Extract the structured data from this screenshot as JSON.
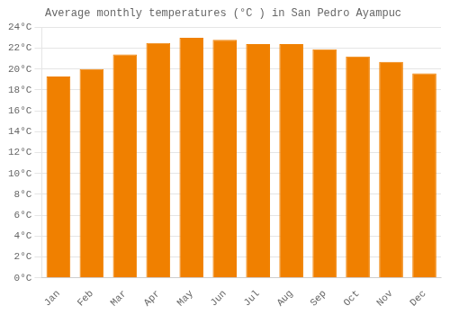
{
  "chart_data": {
    "type": "bar",
    "title": "Average monthly temperatures (°C ) in San Pedro Ayampuc",
    "categories": [
      "Jan",
      "Feb",
      "Mar",
      "Apr",
      "May",
      "Jun",
      "Jul",
      "Aug",
      "Sep",
      "Oct",
      "Nov",
      "Dec"
    ],
    "values": [
      19.3,
      20.0,
      21.4,
      22.5,
      23.0,
      22.8,
      22.4,
      22.4,
      21.9,
      21.2,
      20.7,
      19.6
    ],
    "color": "#F08000",
    "ylim": [
      0,
      24
    ],
    "yticks": [
      {
        "value": 0,
        "label": "0°C"
      },
      {
        "value": 2,
        "label": "2°C"
      },
      {
        "value": 4,
        "label": "4°C"
      },
      {
        "value": 6,
        "label": "6°C"
      },
      {
        "value": 8,
        "label": "8°C"
      },
      {
        "value": 10,
        "label": "10°C"
      },
      {
        "value": 12,
        "label": "12°C"
      },
      {
        "value": 14,
        "label": "14°C"
      },
      {
        "value": 16,
        "label": "16°C"
      },
      {
        "value": 18,
        "label": "18°C"
      },
      {
        "value": 20,
        "label": "20°C"
      },
      {
        "value": 22,
        "label": "22°C"
      },
      {
        "value": 24,
        "label": "24°C"
      }
    ],
    "grid": true
  }
}
